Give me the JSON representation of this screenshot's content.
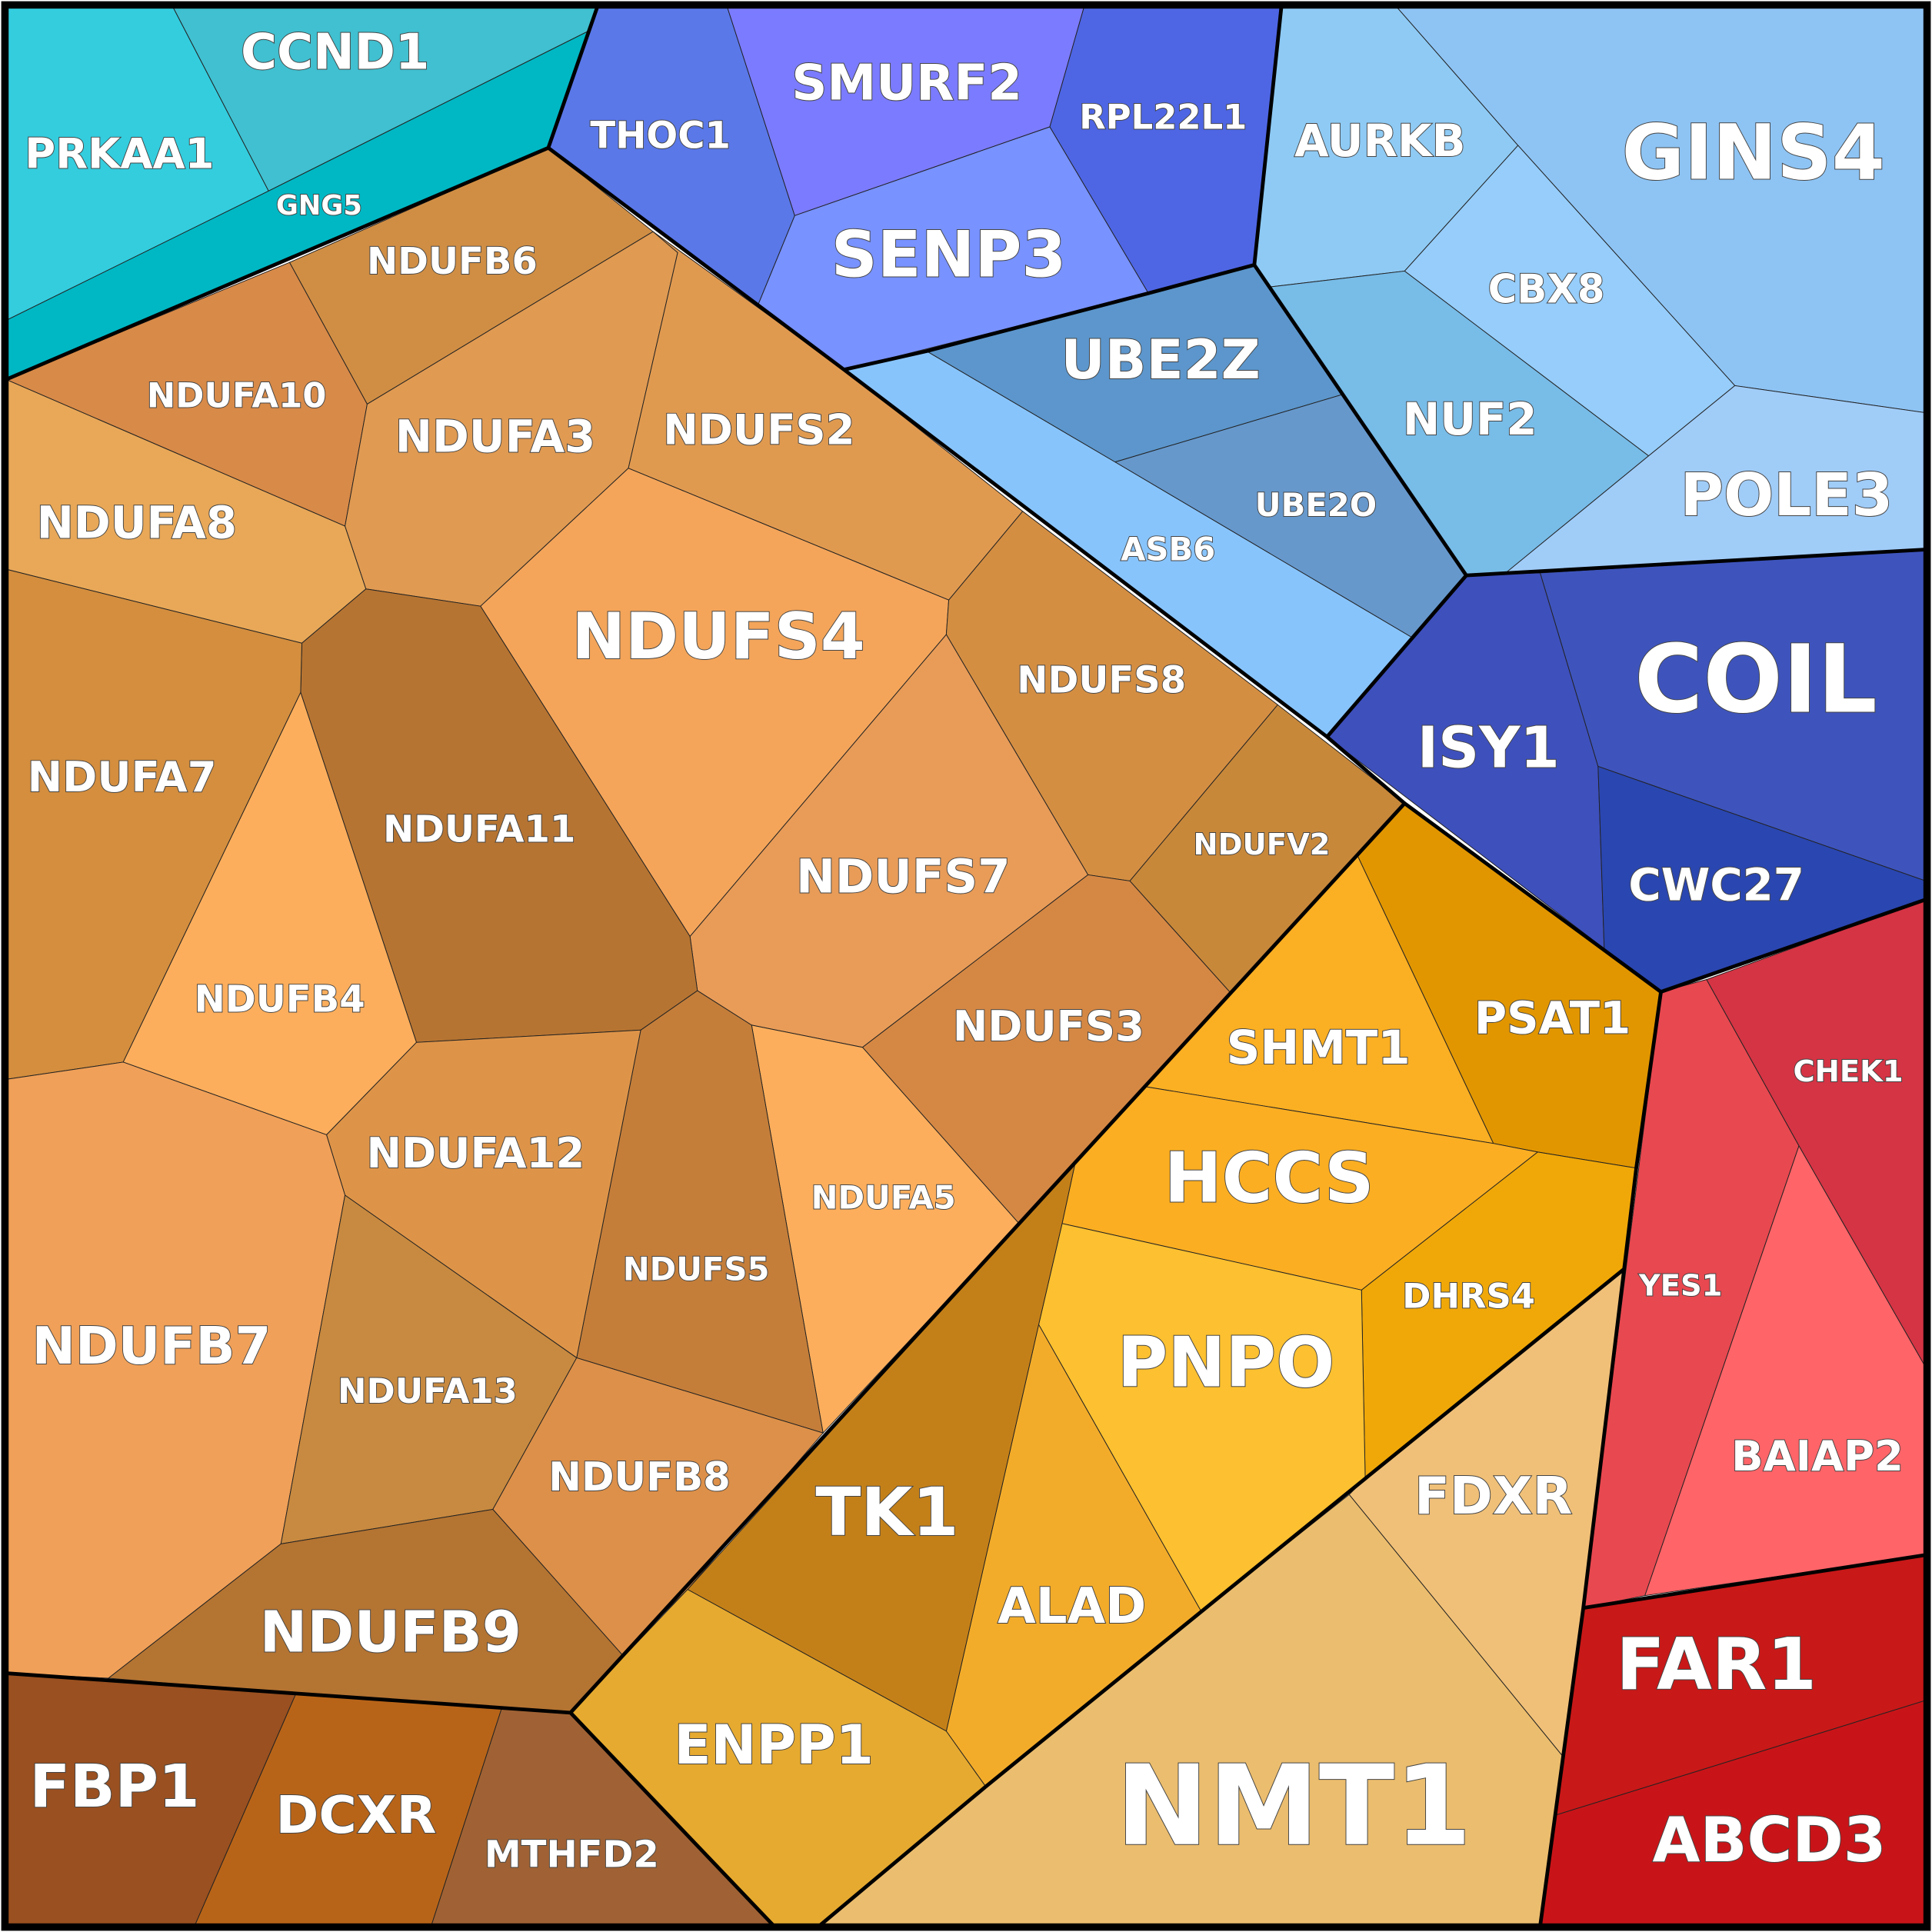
{
  "cells": [
    {
      "label": "PRKAA1"
    },
    {
      "label": "CCND1"
    },
    {
      "label": "GNG5"
    },
    {
      "label": "THOC1"
    },
    {
      "label": "SMURF2"
    },
    {
      "label": "RPL22L1"
    },
    {
      "label": "SENP3"
    },
    {
      "label": "AURKB"
    },
    {
      "label": "GINS4"
    },
    {
      "label": "CBX8"
    },
    {
      "label": "NUF2"
    },
    {
      "label": "POLE3"
    },
    {
      "label": "UBE2Z"
    },
    {
      "label": "UBE2O"
    },
    {
      "label": "ASB6"
    },
    {
      "label": "ISY1"
    },
    {
      "label": "COIL"
    },
    {
      "label": "CWC27"
    },
    {
      "label": "CHEK1"
    },
    {
      "label": "YES1"
    },
    {
      "label": "BAIAP2"
    },
    {
      "label": "FAR1"
    },
    {
      "label": "ABCD3"
    },
    {
      "label": "PSAT1"
    },
    {
      "label": "SHMT1"
    },
    {
      "label": "HCCS"
    },
    {
      "label": "DHRS4"
    },
    {
      "label": "PNPO"
    },
    {
      "label": "FDXR"
    },
    {
      "label": "NMT1"
    },
    {
      "label": "ALAD"
    },
    {
      "label": "TK1"
    },
    {
      "label": "ENPP1"
    },
    {
      "label": "FBP1"
    },
    {
      "label": "DCXR"
    },
    {
      "label": "MTHFD2"
    },
    {
      "label": "NDUFB6"
    },
    {
      "label": "NDUFA10"
    },
    {
      "label": "NDUFA8"
    },
    {
      "label": "NDUFA3"
    },
    {
      "label": "NDUFS2"
    },
    {
      "label": "NDUFS4"
    },
    {
      "label": "NDUFS8"
    },
    {
      "label": "NDUFV2"
    },
    {
      "label": "NDUFS7"
    },
    {
      "label": "NDUFS3"
    },
    {
      "label": "NDUFA5"
    },
    {
      "label": "NDUFS5"
    },
    {
      "label": "NDUFA11"
    },
    {
      "label": "NDUFA7"
    },
    {
      "label": "NDUFB4"
    },
    {
      "label": "NDUFA12"
    },
    {
      "label": "NDUFB7"
    },
    {
      "label": "NDUFA13"
    },
    {
      "label": "NDUFB8"
    },
    {
      "label": "NDUFB9"
    }
  ]
}
